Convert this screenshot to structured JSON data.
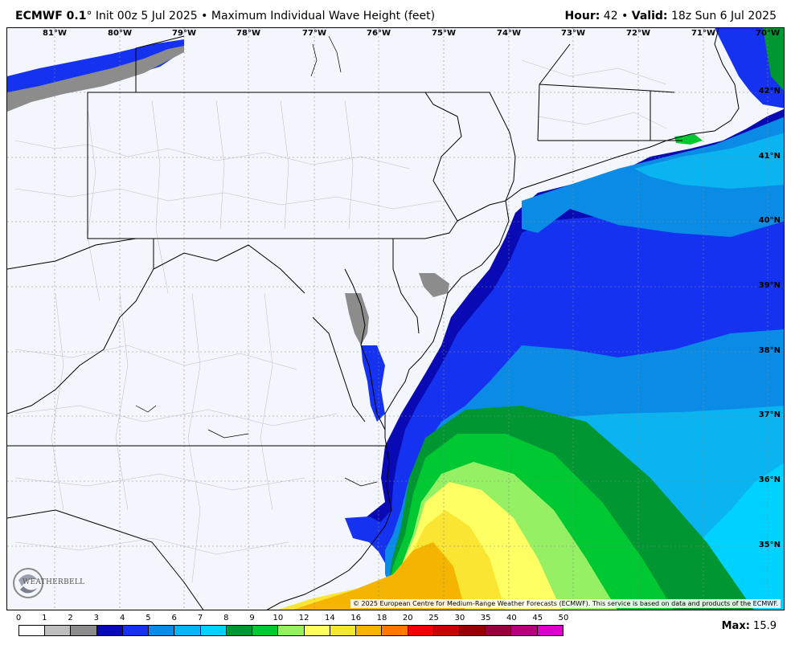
{
  "header": {
    "model": "ECMWF 0.1",
    "degree_symbol": "°",
    "init": "Init 00z 5 Jul 2025",
    "separator": "•",
    "product": "Maximum Individual Wave Height (feet)",
    "hour_label": "Hour:",
    "hour_value": "42",
    "valid_label": "Valid:",
    "valid_value": "18z Sun 6 Jul 2025"
  },
  "map": {
    "longitude_labels": [
      "81°W",
      "80°W",
      "79°W",
      "78°W",
      "77°W",
      "76°W",
      "75°W",
      "74°W",
      "73°W",
      "72°W",
      "71°W",
      "70°W"
    ],
    "latitude_labels": [
      "42°N",
      "41°N",
      "40°N",
      "39°N",
      "38°N",
      "37°N",
      "36°N",
      "35°N"
    ],
    "land_color": "#f4f6fd",
    "border_color": "#000000"
  },
  "copyright": "© 2025 European Centre for Medium-Range Weather Forecasts (ECMWF). This service is based on data and products of the ECMWF.",
  "logo": {
    "text": "WEATHERBELL",
    "icon": "weatherbell-swirl-icon"
  },
  "legend": {
    "ticks": [
      "0",
      "1",
      "2",
      "3",
      "4",
      "5",
      "6",
      "7",
      "8",
      "9",
      "10",
      "12",
      "14",
      "16",
      "18",
      "20",
      "25",
      "30",
      "35",
      "40",
      "45",
      "50"
    ],
    "colors": [
      "#ffffff",
      "#bebebe",
      "#8c8c8c",
      "#0a0ab4",
      "#1432f0",
      "#0a8ce6",
      "#0ab4f0",
      "#00d2ff",
      "#009632",
      "#00c832",
      "#96f064",
      "#ffff64",
      "#fae632",
      "#f5b400",
      "#ff7800",
      "#f00000",
      "#c80000",
      "#960000",
      "#96003c",
      "#b4007d",
      "#dc00c8"
    ]
  },
  "max": {
    "label": "Max:",
    "value": "15.9"
  }
}
